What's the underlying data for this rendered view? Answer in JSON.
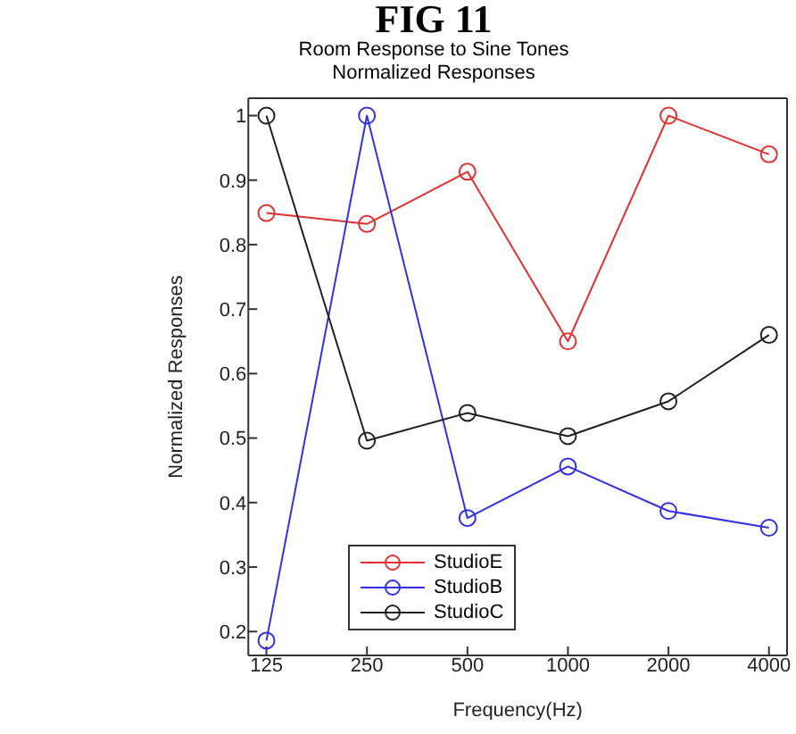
{
  "chart_data": {
    "type": "line",
    "title": "FIG 11",
    "subtitle": "Room Response to Sine Tones\nNormalized Responses",
    "xlabel": "Frequency(Hz)",
    "ylabel": "Normalized Responses",
    "categories": [
      "125",
      "250",
      "500",
      "1000",
      "2000",
      "4000"
    ],
    "series": [
      {
        "name": "StudioE",
        "color": "#e03030",
        "values": [
          0.849,
          0.832,
          0.913,
          0.65,
          1.0,
          0.94
        ]
      },
      {
        "name": "StudioB",
        "color": "#3030e0",
        "values": [
          0.186,
          1.0,
          0.376,
          0.456,
          0.387,
          0.361
        ]
      },
      {
        "name": "StudioC",
        "color": "#202020",
        "values": [
          1.0,
          0.496,
          0.539,
          0.503,
          0.557,
          0.66
        ]
      }
    ],
    "ylim": [
      0.163,
      1.027
    ],
    "yticks": [
      0.2,
      0.3,
      0.4,
      0.5,
      0.6,
      0.7,
      0.8,
      0.9,
      1
    ],
    "grid": false,
    "legend": "bottom",
    "marker": "circle",
    "line_style": "solid"
  }
}
